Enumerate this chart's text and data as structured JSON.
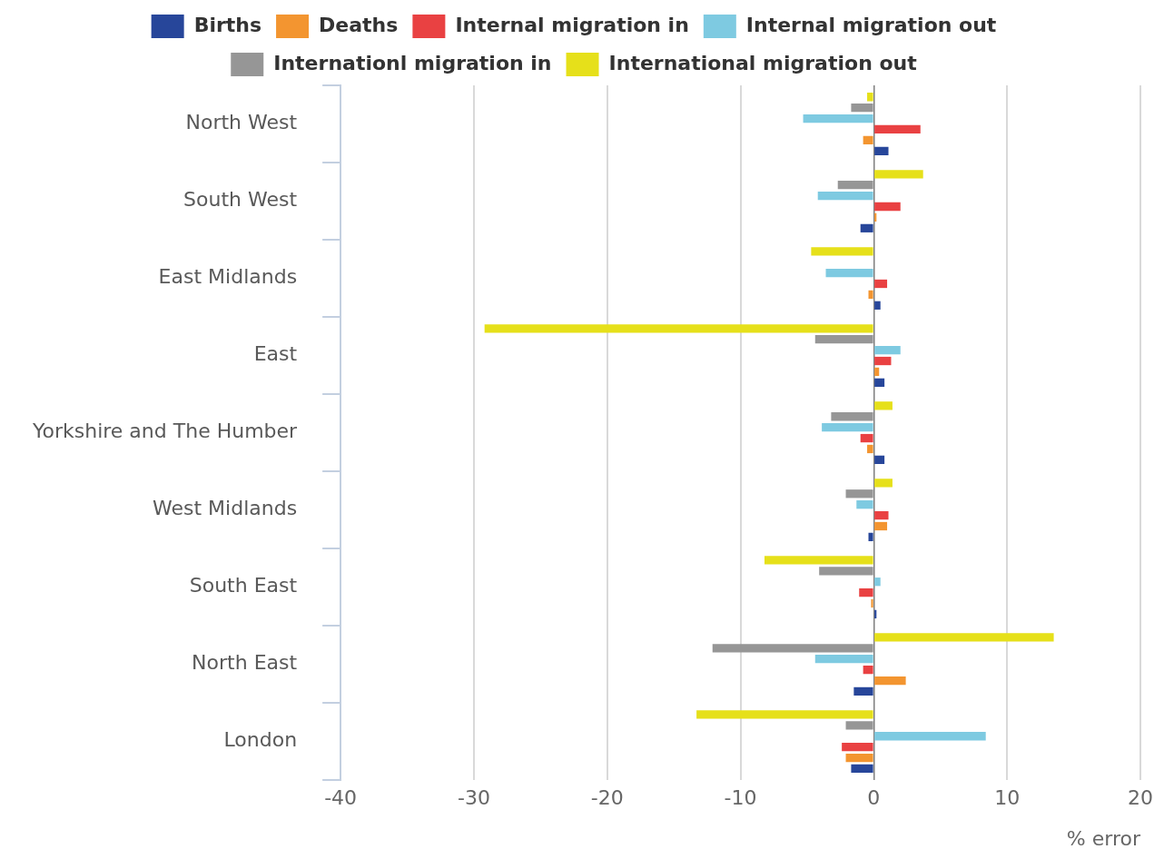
{
  "chart_data": {
    "type": "bar",
    "orientation": "horizontal",
    "xlabel": "% error",
    "categories": [
      "North West",
      "South West",
      "East Midlands",
      "East",
      "Yorkshire and The Humber",
      "West Midlands",
      "South East",
      "North East",
      "London"
    ],
    "series": [
      {
        "name": "Births",
        "color": "#27469a",
        "values": [
          1.1,
          -1.0,
          0.5,
          0.8,
          0.8,
          -0.4,
          0.2,
          -1.5,
          -1.7
        ]
      },
      {
        "name": "Deaths",
        "color": "#f39530",
        "values": [
          -0.8,
          0.2,
          -0.4,
          0.4,
          -0.5,
          1.0,
          -0.2,
          2.4,
          -2.1
        ]
      },
      {
        "name": "Internal migration in",
        "color": "#e94142",
        "values": [
          3.5,
          2.0,
          1.0,
          1.3,
          -1.0,
          1.1,
          -1.1,
          -0.8,
          -2.4
        ]
      },
      {
        "name": "Internal migration out",
        "color": "#7ecae1",
        "values": [
          -5.3,
          -4.2,
          -3.6,
          2.0,
          -3.9,
          -1.3,
          0.5,
          -4.4,
          8.4
        ]
      },
      {
        "name": "Internationl migration in",
        "color": "#969696",
        "values": [
          -1.7,
          -2.7,
          0,
          -4.4,
          -3.2,
          -2.1,
          -4.1,
          -12.1,
          -2.1
        ]
      },
      {
        "name": "International migration out",
        "color": "#e6e01a",
        "values": [
          -0.5,
          3.7,
          -4.7,
          -29.2,
          1.4,
          1.4,
          -8.2,
          13.5,
          -13.3
        ]
      }
    ],
    "xlim": [
      -40,
      20
    ],
    "xticks": [
      -40,
      -30,
      -20,
      -10,
      0,
      10,
      20
    ],
    "grid": "x",
    "legend": "top"
  }
}
